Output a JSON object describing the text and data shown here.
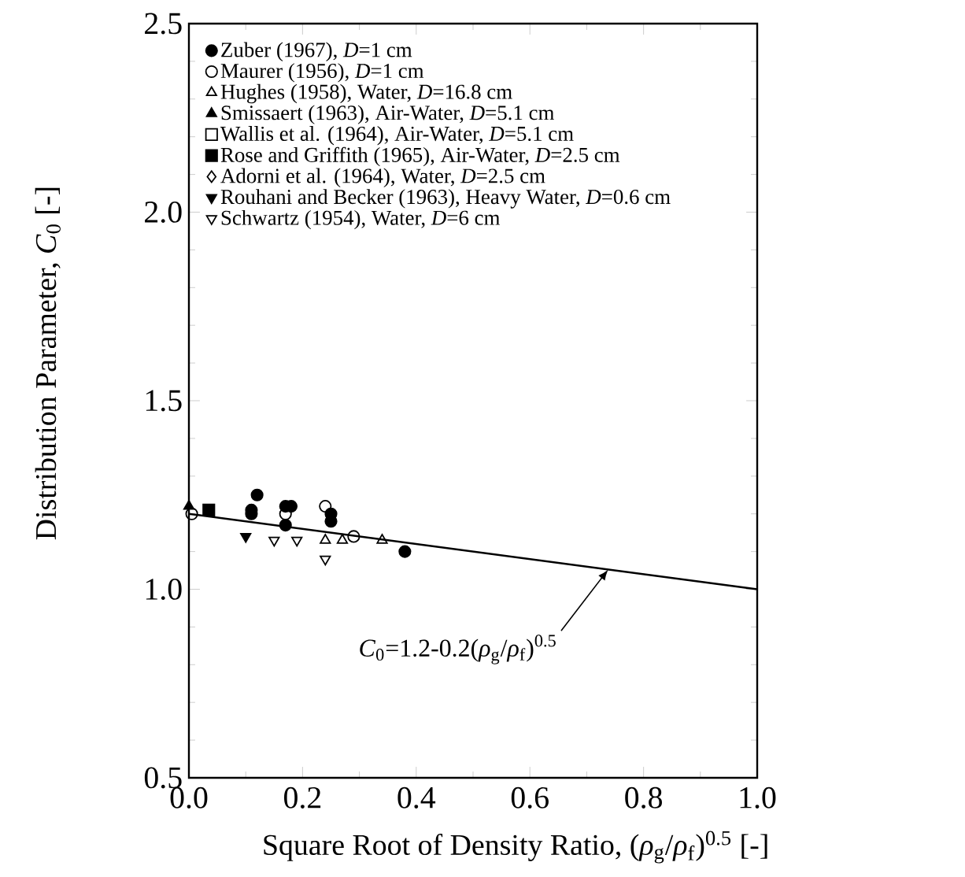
{
  "chart_data": {
    "type": "scatter",
    "xlabel": "Square Root of Density Ratio,  (*ρ*$_{g}$/*ρ*$_{f}$)$^{0.5}$  [-]",
    "ylabel": "Distribution Parameter,  *C*$_{0}$  [-]",
    "xlim": [
      0,
      1
    ],
    "ylim": [
      0.5,
      2.5
    ],
    "xticks": [
      {
        "value": 0,
        "label": "0.0"
      },
      {
        "value": 0.2,
        "label": "0.2"
      },
      {
        "value": 0.4,
        "label": "0.4"
      },
      {
        "value": 0.6,
        "label": "0.6"
      },
      {
        "value": 0.8,
        "label": "0.8"
      },
      {
        "value": 1,
        "label": "1.0"
      }
    ],
    "yticks": [
      {
        "value": 0.5,
        "label": "0.5"
      },
      {
        "value": 1,
        "label": "1.0"
      },
      {
        "value": 1.5,
        "label": "1.5"
      },
      {
        "value": 2,
        "label": "2.0"
      },
      {
        "value": 2.5,
        "label": "2.5"
      }
    ],
    "legend": "top left",
    "grid": false,
    "series": [
      {
        "name": "Zuber (1967), *D*=1 cm",
        "marker": "circle",
        "color": "#000000",
        "x": [
          0.11,
          0.11,
          0.12,
          0.17,
          0.17,
          0.18,
          0.25,
          0.25,
          0.38
        ],
        "values": [
          1.2,
          1.21,
          1.25,
          1.17,
          1.22,
          1.22,
          1.18,
          1.2,
          1.1
        ]
      },
      {
        "name": "Maurer (1956), *D*=1 cm",
        "marker": "circle open",
        "color": "#000000",
        "x": [
          0.005,
          0.17,
          0.24,
          0.29
        ],
        "values": [
          1.2,
          1.2,
          1.22,
          1.14
        ]
      },
      {
        "name": "Hughes (1958), Water, *D*=16.8 cm",
        "marker": "triangle open",
        "color": "#000000",
        "x": [
          0.24,
          0.27,
          0.34
        ],
        "values": [
          1.13,
          1.13,
          1.13
        ]
      },
      {
        "name": "Smissaert (1963), Air-Water, *D*=5.1 cm",
        "marker": "triangle",
        "color": "#000000",
        "x": [
          0.0
        ],
        "values": [
          1.22
        ]
      },
      {
        "name": "Wallis et al. (1964), Air-Water, *D*=5.1 cm",
        "marker": "square open",
        "color": "#000000"
      },
      {
        "name": "Rose and Griffith (1965), Air-Water, *D*=2.5 cm",
        "marker": "square",
        "color": "#000000",
        "x": [
          0.035
        ],
        "values": [
          1.21
        ]
      },
      {
        "name": "Adorni et al. (1964), Water, *D*=2.5 cm",
        "marker": "diamond open",
        "color": "#000000"
      },
      {
        "name": "Rouhani and Becker (1963), Heavy Water, *D*=0.6 cm",
        "marker": "triangle down",
        "color": "#000000",
        "x": [
          0.1
        ],
        "values": [
          1.14
        ]
      },
      {
        "name": "Schwartz (1954), Water, *D*=6 cm",
        "marker": "triangle down open",
        "color": "#000000",
        "x": [
          0.15,
          0.19,
          0.24
        ],
        "values": [
          1.13,
          1.13,
          1.08
        ]
      },
      {
        "type": "line",
        "line_style": "solid",
        "marker": "none",
        "color": "#000000",
        "x": [
          0,
          1
        ],
        "values": [
          1.2,
          1.0
        ]
      }
    ],
    "annotations": [
      "*C*$_{0}$=1.2-0.2(*ρ*$_{g}$/*ρ*$_{f}$)$^{0.5}$"
    ]
  }
}
